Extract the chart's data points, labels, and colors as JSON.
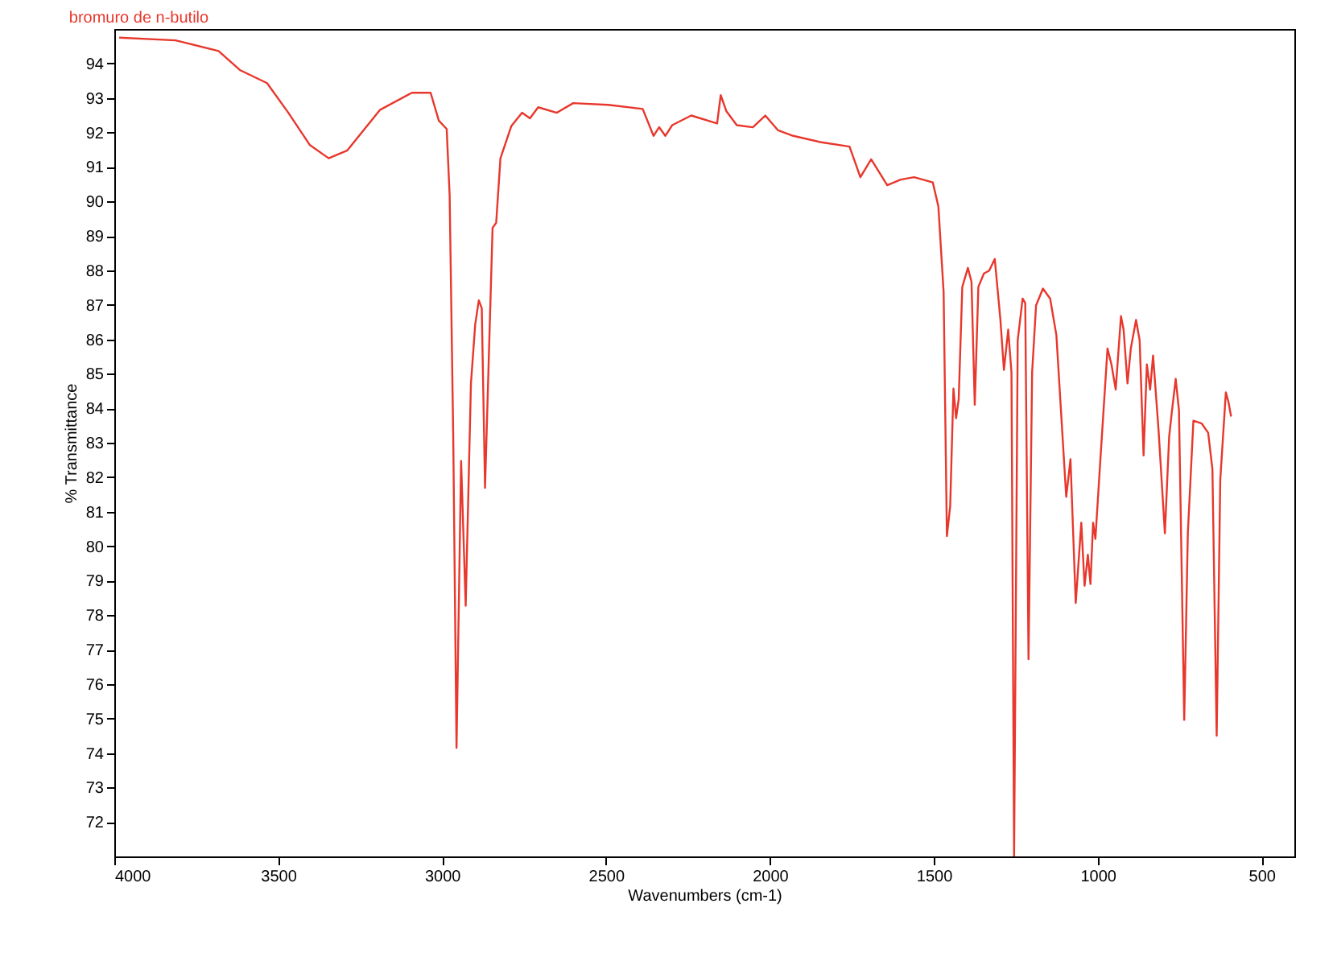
{
  "chart_data": {
    "type": "line",
    "title": "bromuro de n-butilo",
    "xlabel": "Wavenumbers (cm-1)",
    "ylabel": "% Transmittance",
    "xlim": [
      4000,
      400
    ],
    "xticks": [
      4000,
      3500,
      3000,
      2500,
      2000,
      1500,
      1000,
      500
    ],
    "ylim": [
      71,
      95
    ],
    "yticks": [
      72,
      73,
      74,
      75,
      76,
      77,
      78,
      79,
      80,
      81,
      82,
      83,
      84,
      85,
      86,
      87,
      88,
      89,
      90,
      91,
      92,
      93,
      94
    ],
    "grid": false,
    "marker": "none",
    "line_style": "solid",
    "series": [
      {
        "color": "#e8372c",
        "x": [
          3985,
          3813,
          3682,
          3617,
          3534,
          3469,
          3404,
          3346,
          3289,
          3190,
          3092,
          3035,
          3010,
          2986,
          2977,
          2966,
          2956,
          2942,
          2928,
          2912,
          2899,
          2888,
          2879,
          2869,
          2846,
          2835,
          2822,
          2789,
          2756,
          2732,
          2707,
          2650,
          2600,
          2494,
          2388,
          2355,
          2338,
          2319,
          2298,
          2240,
          2161,
          2150,
          2133,
          2101,
          2052,
          2014,
          1975,
          1929,
          1847,
          1757,
          1724,
          1691,
          1642,
          1601,
          1560,
          1503,
          1486,
          1470,
          1460,
          1450,
          1440,
          1432,
          1424,
          1413,
          1396,
          1385,
          1375,
          1364,
          1347,
          1331,
          1314,
          1297,
          1286,
          1273,
          1263,
          1255,
          1244,
          1229,
          1221,
          1211,
          1200,
          1188,
          1167,
          1145,
          1126,
          1096,
          1083,
          1067,
          1050,
          1040,
          1030,
          1022,
          1014,
          1007,
          991,
          970,
          958,
          945,
          929,
          921,
          909,
          899,
          883,
          872,
          860,
          850,
          840,
          831,
          814,
          795,
          782,
          774,
          762,
          752,
          736,
          725,
          708,
          683,
          663,
          650,
          637,
          626,
          609,
          601,
          593
        ],
        "values": [
          94.75,
          94.67,
          94.36,
          93.81,
          93.43,
          92.57,
          91.64,
          91.25,
          91.48,
          92.65,
          93.15,
          93.15,
          92.34,
          92.1,
          90.18,
          83.17,
          74.15,
          82.47,
          78.27,
          84.72,
          86.43,
          87.13,
          86.9,
          81.69,
          89.23,
          89.38,
          91.25,
          92.18,
          92.57,
          92.41,
          92.73,
          92.57,
          92.85,
          92.8,
          92.68,
          91.9,
          92.15,
          91.9,
          92.21,
          92.49,
          92.26,
          93.08,
          92.62,
          92.21,
          92.15,
          92.49,
          92.06,
          91.9,
          91.72,
          91.59,
          90.7,
          91.22,
          90.47,
          90.63,
          90.7,
          90.55,
          89.85,
          87.37,
          80.29,
          81.15,
          84.57,
          83.71,
          84.26,
          87.52,
          88.07,
          87.67,
          84.1,
          87.52,
          87.91,
          87.99,
          88.33,
          86.59,
          85.11,
          86.28,
          85.04,
          71.0,
          85.97,
          87.18,
          87.05,
          76.72,
          85.04,
          86.98,
          87.47,
          87.18,
          86.12,
          81.43,
          82.52,
          78.35,
          80.68,
          78.85,
          79.75,
          78.9,
          80.68,
          80.21,
          82.63,
          85.73,
          85.27,
          84.54,
          86.67,
          86.28,
          84.72,
          85.73,
          86.56,
          85.97,
          82.63,
          85.27,
          84.54,
          85.53,
          83.32,
          80.37,
          83.17,
          83.87,
          84.85,
          83.94,
          74.96,
          80.37,
          83.64,
          83.56,
          83.29,
          82.24,
          74.5,
          81.93,
          84.46,
          84.18,
          83.76
        ]
      }
    ]
  }
}
